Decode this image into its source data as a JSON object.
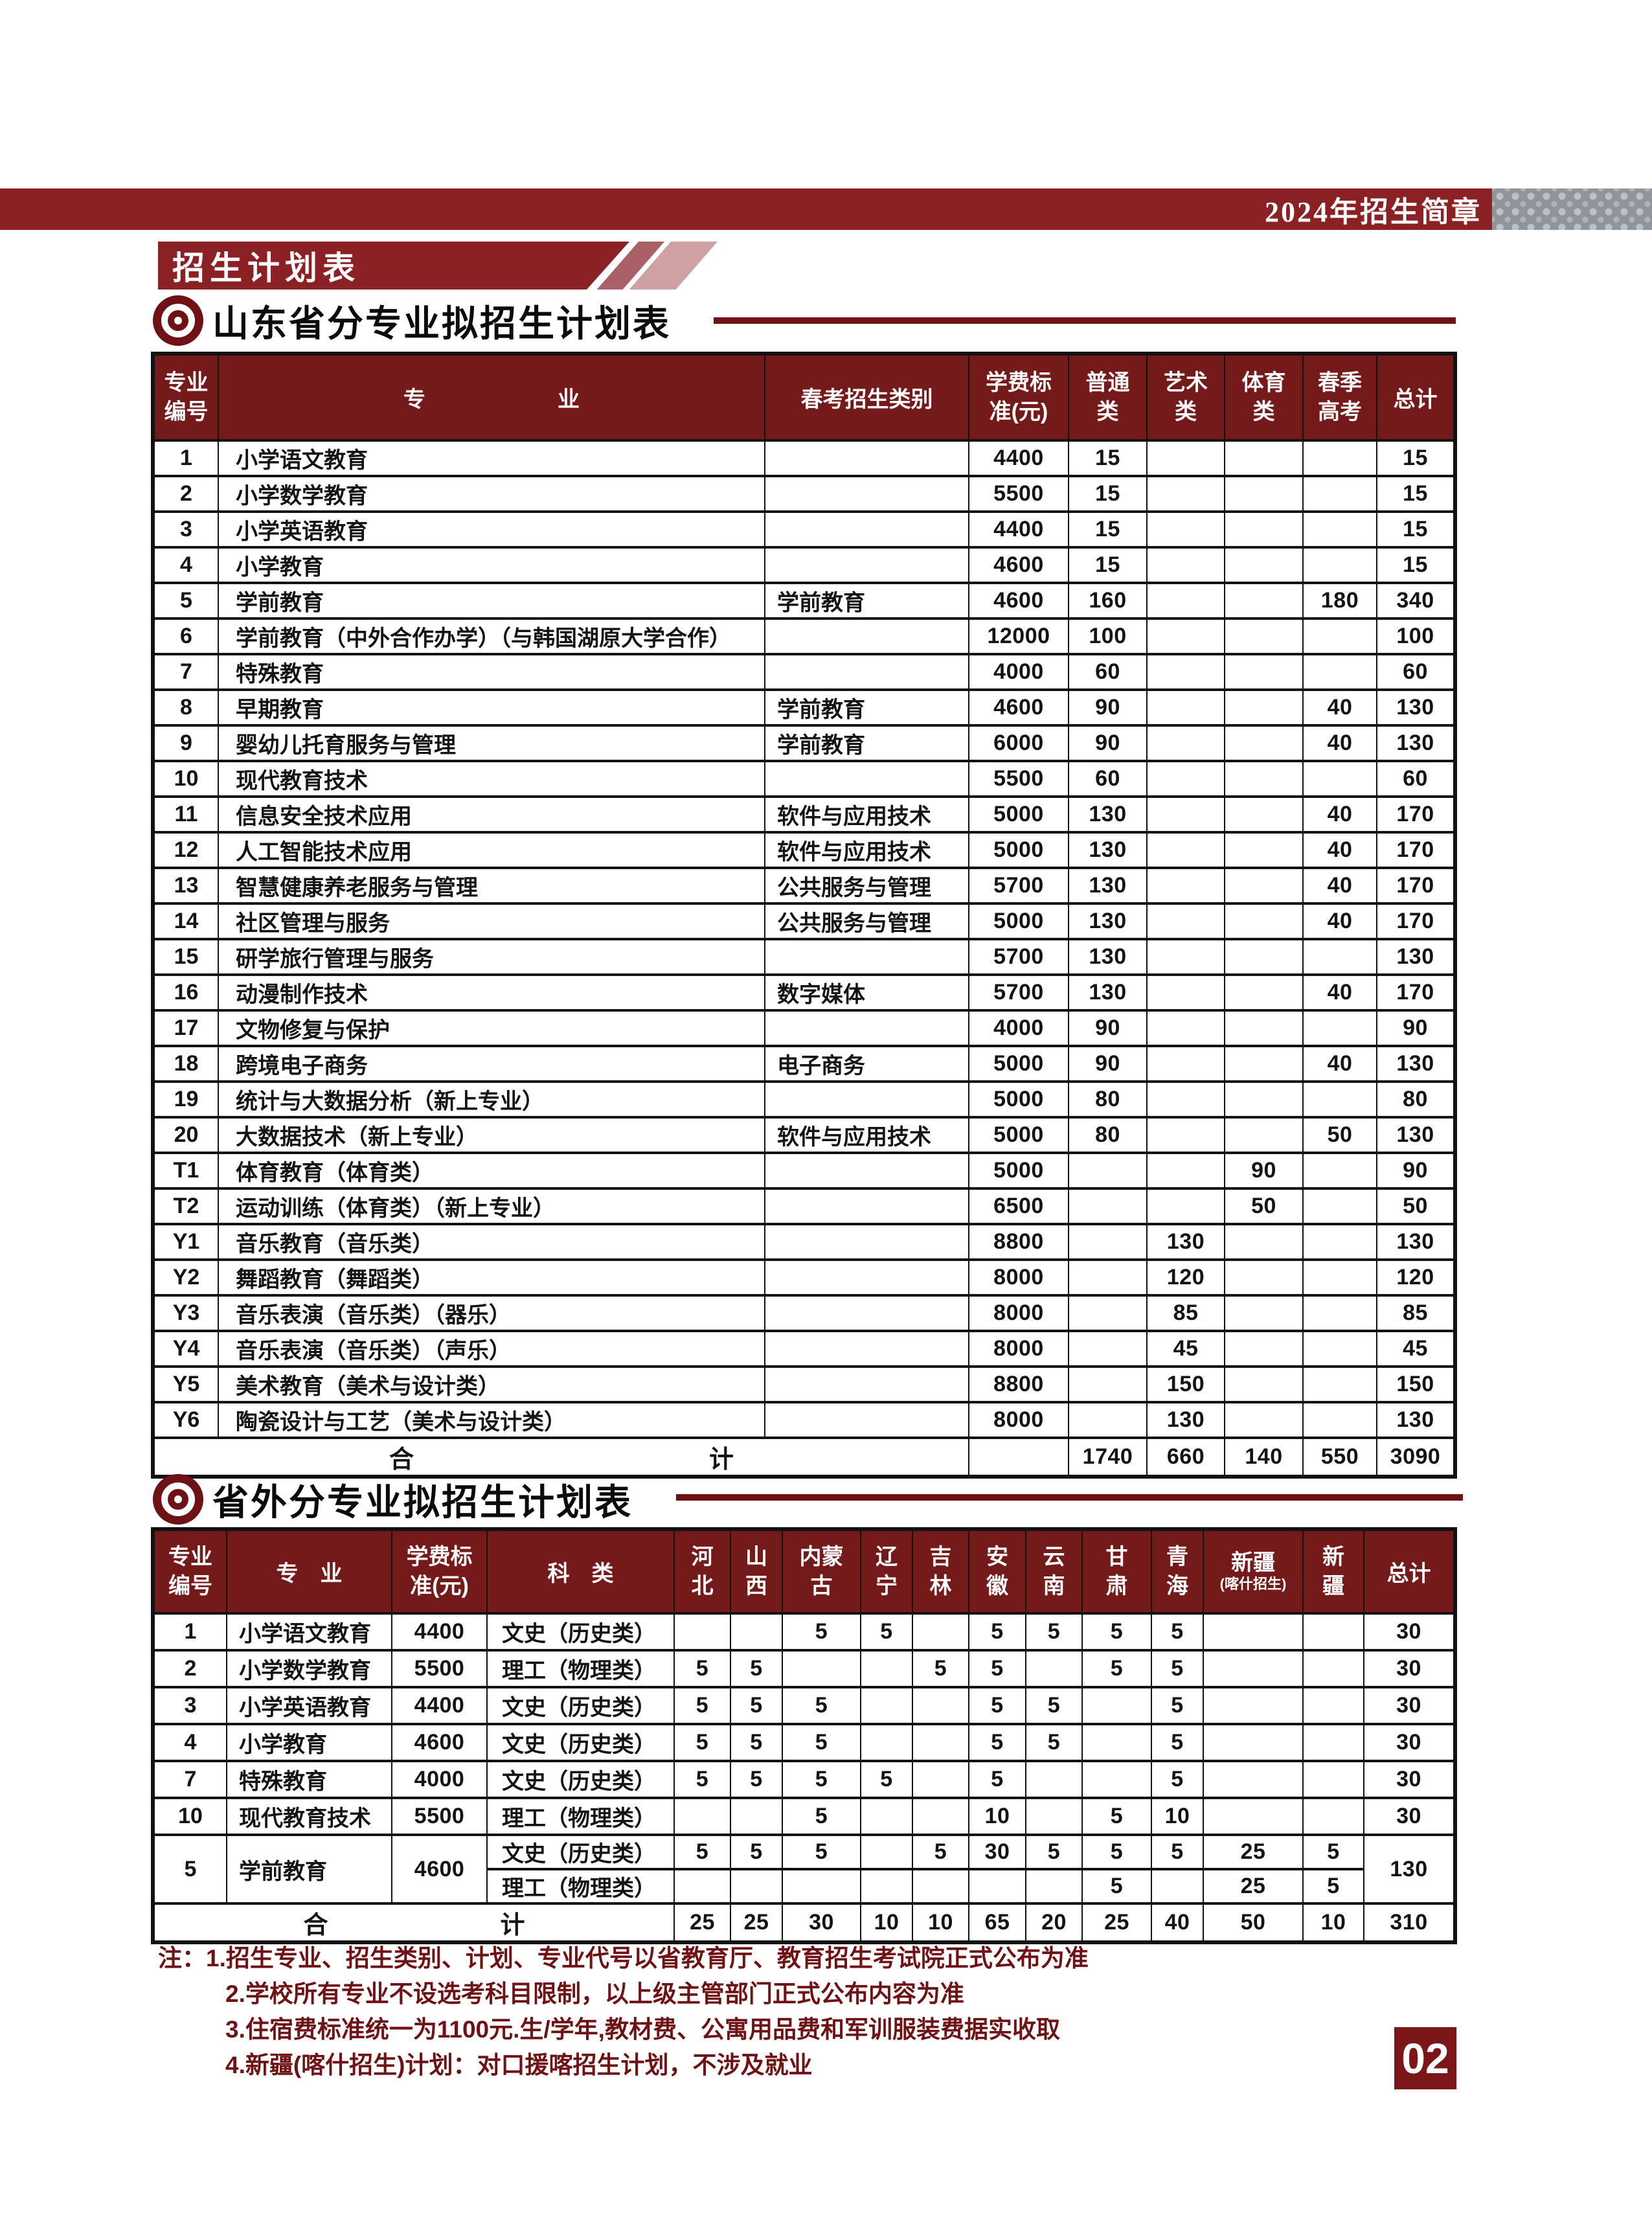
{
  "page": {
    "top_bar": {
      "title": "2024年招生简章"
    },
    "banner": {
      "title": "招生计划表"
    },
    "page_number": "02"
  },
  "section1": {
    "title": "山东省分专业拟招生计划表"
  },
  "section2": {
    "title": "省外分专业拟招生计划表"
  },
  "colors": {
    "accent": "#8b2125",
    "table_header": "#741a1b",
    "note_text": "#6f1215"
  },
  "table1": {
    "headers": [
      "专业编号",
      "专　　　　　　业",
      "春考招生类别",
      "学费标准(元)",
      "普通类",
      "艺术类",
      "体育类",
      "春季高考",
      "总计"
    ],
    "rows": [
      [
        "1",
        "小学语文教育",
        "",
        "4400",
        "15",
        "",
        "",
        "",
        "15"
      ],
      [
        "2",
        "小学数学教育",
        "",
        "5500",
        "15",
        "",
        "",
        "",
        "15"
      ],
      [
        "3",
        "小学英语教育",
        "",
        "4400",
        "15",
        "",
        "",
        "",
        "15"
      ],
      [
        "4",
        "小学教育",
        "",
        "4600",
        "15",
        "",
        "",
        "",
        "15"
      ],
      [
        "5",
        "学前教育",
        "学前教育",
        "4600",
        "160",
        "",
        "",
        "180",
        "340"
      ],
      [
        "6",
        "学前教育（中外合作办学）（与韩国湖原大学合作）",
        "",
        "12000",
        "100",
        "",
        "",
        "",
        "100"
      ],
      [
        "7",
        "特殊教育",
        "",
        "4000",
        "60",
        "",
        "",
        "",
        "60"
      ],
      [
        "8",
        "早期教育",
        "学前教育",
        "4600",
        "90",
        "",
        "",
        "40",
        "130"
      ],
      [
        "9",
        "婴幼儿托育服务与管理",
        "学前教育",
        "6000",
        "90",
        "",
        "",
        "40",
        "130"
      ],
      [
        "10",
        "现代教育技术",
        "",
        "5500",
        "60",
        "",
        "",
        "",
        "60"
      ],
      [
        "11",
        "信息安全技术应用",
        "软件与应用技术",
        "5000",
        "130",
        "",
        "",
        "40",
        "170"
      ],
      [
        "12",
        "人工智能技术应用",
        "软件与应用技术",
        "5000",
        "130",
        "",
        "",
        "40",
        "170"
      ],
      [
        "13",
        "智慧健康养老服务与管理",
        "公共服务与管理",
        "5700",
        "130",
        "",
        "",
        "40",
        "170"
      ],
      [
        "14",
        "社区管理与服务",
        "公共服务与管理",
        "5000",
        "130",
        "",
        "",
        "40",
        "170"
      ],
      [
        "15",
        "研学旅行管理与服务",
        "",
        "5700",
        "130",
        "",
        "",
        "",
        "130"
      ],
      [
        "16",
        "动漫制作技术",
        "数字媒体",
        "5700",
        "130",
        "",
        "",
        "40",
        "170"
      ],
      [
        "17",
        "文物修复与保护",
        "",
        "4000",
        "90",
        "",
        "",
        "",
        "90"
      ],
      [
        "18",
        "跨境电子商务",
        "电子商务",
        "5000",
        "90",
        "",
        "",
        "40",
        "130"
      ],
      [
        "19",
        "统计与大数据分析（新上专业）",
        "",
        "5000",
        "80",
        "",
        "",
        "",
        "80"
      ],
      [
        "20",
        "大数据技术（新上专业）",
        "软件与应用技术",
        "5000",
        "80",
        "",
        "",
        "50",
        "130"
      ],
      [
        "T1",
        "体育教育（体育类）",
        "",
        "5000",
        "",
        "",
        "90",
        "",
        "90"
      ],
      [
        "T2",
        "运动训练（体育类）（新上专业）",
        "",
        "6500",
        "",
        "",
        "50",
        "",
        "50"
      ],
      [
        "Y1",
        "音乐教育（音乐类）",
        "",
        "8800",
        "",
        "130",
        "",
        "",
        "130"
      ],
      [
        "Y2",
        "舞蹈教育（舞蹈类）",
        "",
        "8000",
        "",
        "120",
        "",
        "",
        "120"
      ],
      [
        "Y3",
        "音乐表演（音乐类）（器乐）",
        "",
        "8000",
        "",
        "85",
        "",
        "",
        "85"
      ],
      [
        "Y4",
        "音乐表演（音乐类）（声乐）",
        "",
        "8000",
        "",
        "45",
        "",
        "",
        "45"
      ],
      [
        "Y5",
        "美术教育（美术与设计类）",
        "",
        "8800",
        "",
        "150",
        "",
        "",
        "150"
      ],
      [
        "Y6",
        "陶瓷设计与工艺（美术与设计类）",
        "",
        "8000",
        "",
        "130",
        "",
        "",
        "130"
      ]
    ],
    "total_row": {
      "label": "合　　　　　　　　　　　　计",
      "fee": "",
      "values": [
        "1740",
        "660",
        "140",
        "550",
        "3090"
      ]
    }
  },
  "table2": {
    "headers": {
      "id": "专业编号",
      "major": "专　业",
      "fee": "学费标准(元)",
      "kelei": "科　类",
      "provinces": [
        "河北",
        "山西",
        "内蒙古",
        "辽宁",
        "吉林",
        "安徽",
        "云南",
        "甘肃",
        "青海"
      ],
      "xinjiang_kashi_line1": "新疆",
      "xinjiang_kashi_line2": "(喀什招生)",
      "xinjiang": "新疆",
      "total": "总计"
    },
    "rows": [
      [
        "1",
        "小学语文教育",
        "4400",
        "文史（历史类）",
        "",
        "",
        "5",
        "5",
        "",
        "5",
        "5",
        "5",
        "5",
        "",
        "",
        "30"
      ],
      [
        "2",
        "小学数学教育",
        "5500",
        "理工（物理类）",
        "5",
        "5",
        "",
        "",
        "5",
        "5",
        "",
        "5",
        "5",
        "",
        "",
        "30"
      ],
      [
        "3",
        "小学英语教育",
        "4400",
        "文史（历史类）",
        "5",
        "5",
        "5",
        "",
        "",
        "5",
        "5",
        "",
        "5",
        "",
        "",
        "30"
      ],
      [
        "4",
        "小学教育",
        "4600",
        "文史（历史类）",
        "5",
        "5",
        "5",
        "",
        "",
        "5",
        "5",
        "",
        "5",
        "",
        "",
        "30"
      ],
      [
        "7",
        "特殊教育",
        "4000",
        "文史（历史类）",
        "5",
        "5",
        "5",
        "5",
        "",
        "5",
        "",
        "",
        "5",
        "",
        "",
        "30"
      ],
      [
        "10",
        "现代教育技术",
        "5500",
        "理工（物理类）",
        "",
        "",
        "5",
        "",
        "",
        "10",
        "",
        "5",
        "10",
        "",
        "",
        "30"
      ]
    ],
    "merged_row": {
      "id": "5",
      "major": "学前教育",
      "fee": "4600",
      "sub1": {
        "kelei": "文史（历史类）",
        "values": [
          "5",
          "5",
          "5",
          "",
          "5",
          "30",
          "5",
          "5",
          "5",
          "25",
          "5"
        ]
      },
      "sub2": {
        "kelei": "理工（物理类）",
        "values": [
          "",
          "",
          "",
          "",
          "",
          "",
          "",
          "5",
          "",
          "25",
          "5"
        ]
      },
      "total": "130"
    },
    "total_row": {
      "label": "合　　　　　　　计",
      "values": [
        "25",
        "25",
        "30",
        "10",
        "10",
        "65",
        "20",
        "25",
        "40",
        "50",
        "10",
        "310"
      ]
    }
  },
  "notes": {
    "prefix": "注：",
    "items": [
      "1.招生专业、招生类别、计划、专业代号以省教育厅、教育招生考试院正式公布为准",
      "2.学校所有专业不设选考科目限制，以上级主管部门正式公布内容为准",
      "3.住宿费标准统一为1100元.生/学年,教材费、公寓用品费和军训服装费据实收取",
      "4.新疆(喀什招生)计划：对口援喀招生计划，不涉及就业"
    ]
  }
}
